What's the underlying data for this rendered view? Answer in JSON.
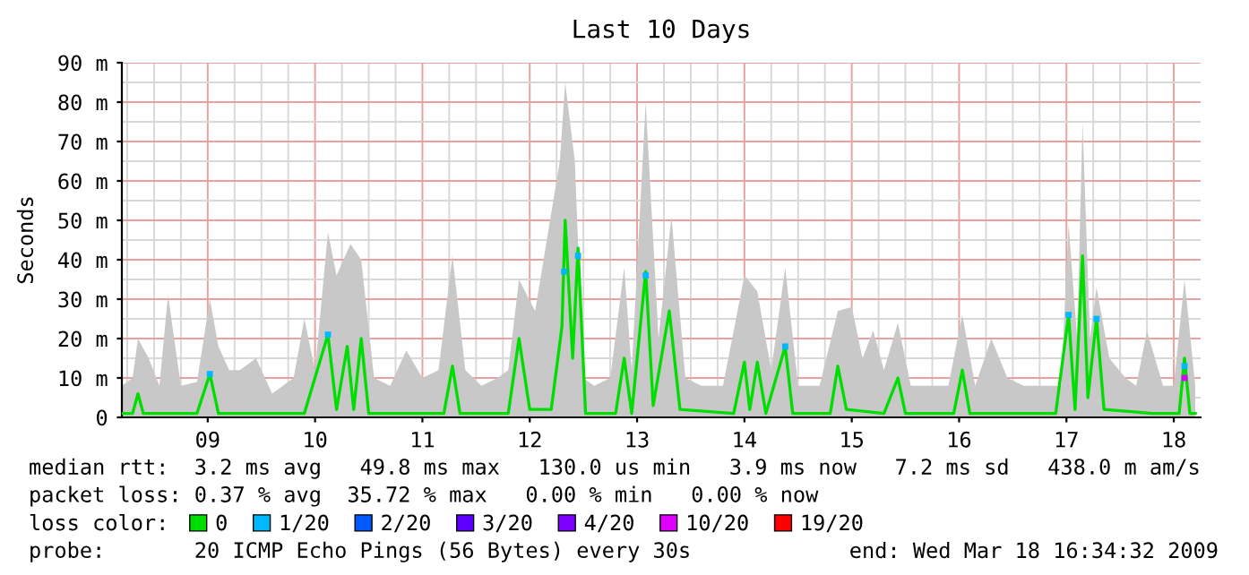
{
  "chart_data": {
    "type": "line",
    "title": "Last 10 Days",
    "ylabel": "Seconds",
    "xlim": [
      8.2,
      18.25
    ],
    "ylim": [
      0,
      90
    ],
    "xticks": [
      {
        "value": 9,
        "label": "09"
      },
      {
        "value": 10,
        "label": "10"
      },
      {
        "value": 11,
        "label": "11"
      },
      {
        "value": 12,
        "label": "12"
      },
      {
        "value": 13,
        "label": "13"
      },
      {
        "value": 14,
        "label": "14"
      },
      {
        "value": 15,
        "label": "15"
      },
      {
        "value": 16,
        "label": "16"
      },
      {
        "value": 17,
        "label": "17"
      },
      {
        "value": 18,
        "label": "18"
      }
    ],
    "yticks": [
      {
        "value": 0,
        "label": "0"
      },
      {
        "value": 10,
        "label": "10 m"
      },
      {
        "value": 20,
        "label": "20 m"
      },
      {
        "value": 30,
        "label": "30 m"
      },
      {
        "value": 40,
        "label": "40 m"
      },
      {
        "value": 50,
        "label": "50 m"
      },
      {
        "value": 60,
        "label": "60 m"
      },
      {
        "value": 70,
        "label": "70 m"
      },
      {
        "value": 80,
        "label": "80 m"
      },
      {
        "value": 90,
        "label": "90 m"
      }
    ],
    "grid": true,
    "legend": "bottom",
    "legend_title": "loss color:",
    "series": [
      {
        "type": "area",
        "color": "#c8c8c8",
        "x": [
          8.2,
          8.3,
          8.35,
          8.45,
          8.55,
          8.63,
          8.75,
          8.9,
          9.02,
          9.1,
          9.2,
          9.3,
          9.45,
          9.6,
          9.8,
          9.9,
          10.0,
          10.12,
          10.2,
          10.33,
          10.43,
          10.55,
          10.7,
          10.85,
          11.0,
          11.15,
          11.28,
          11.4,
          11.55,
          11.7,
          11.8,
          11.9,
          12.05,
          12.28,
          12.33,
          12.42,
          12.5,
          12.6,
          12.75,
          12.88,
          12.95,
          13.08,
          13.2,
          13.32,
          13.45,
          13.6,
          13.8,
          14.0,
          14.12,
          14.25,
          14.38,
          14.5,
          14.7,
          14.87,
          15.0,
          15.1,
          15.2,
          15.3,
          15.43,
          15.55,
          15.7,
          15.9,
          16.03,
          16.15,
          16.3,
          16.45,
          16.6,
          16.8,
          16.95,
          17.02,
          17.1,
          17.15,
          17.22,
          17.28,
          17.4,
          17.55,
          17.65,
          17.75,
          17.9,
          18.0,
          18.1,
          18.2
        ],
        "values": [
          8,
          10,
          20,
          15,
          8,
          31,
          8,
          9,
          30,
          18,
          12,
          12,
          15,
          6,
          10,
          25,
          12,
          47,
          36,
          44,
          40,
          10,
          8,
          17,
          10,
          12,
          41,
          12,
          8,
          10,
          12,
          35,
          27,
          65,
          85,
          65,
          10,
          8,
          10,
          38,
          12,
          80,
          20,
          51,
          10,
          8,
          8,
          36,
          32,
          12,
          38,
          8,
          8,
          27,
          28,
          15,
          22,
          12,
          24,
          8,
          8,
          8,
          26,
          8,
          20,
          10,
          8,
          8,
          8,
          49,
          20,
          75,
          20,
          33,
          15,
          10,
          8,
          22,
          8,
          8,
          35,
          8
        ]
      },
      {
        "name": "0",
        "color": "#00dd00",
        "x": [
          8.2,
          8.3,
          8.35,
          8.4,
          8.6,
          8.9,
          9.02,
          9.1,
          9.4,
          9.9,
          10.12,
          10.2,
          10.3,
          10.36,
          10.43,
          10.5,
          10.9,
          11.2,
          11.28,
          11.35,
          11.8,
          11.9,
          12.0,
          12.2,
          12.3,
          12.33,
          12.4,
          12.45,
          12.52,
          12.8,
          12.88,
          12.95,
          13.08,
          13.15,
          13.3,
          13.4,
          13.9,
          14.0,
          14.05,
          14.12,
          14.2,
          14.38,
          14.45,
          14.8,
          14.87,
          14.95,
          15.3,
          15.43,
          15.5,
          15.95,
          16.03,
          16.1,
          16.9,
          17.02,
          17.08,
          17.15,
          17.2,
          17.28,
          17.35,
          17.8,
          18.05,
          18.1,
          18.15,
          18.2
        ],
        "values": [
          1,
          1,
          6,
          1,
          1,
          1,
          11,
          1,
          1,
          1,
          21,
          2,
          18,
          2,
          20,
          1,
          1,
          1,
          13,
          1,
          1,
          20,
          2,
          2,
          23,
          50,
          15,
          43,
          1,
          1,
          15,
          1,
          37,
          3,
          27,
          2,
          1,
          14,
          2,
          14,
          1,
          18,
          1,
          1,
          13,
          2,
          1,
          10,
          1,
          1,
          12,
          1,
          1,
          26,
          2,
          41,
          5,
          25,
          2,
          1,
          1,
          15,
          1,
          1
        ]
      },
      {
        "type": "scatter",
        "name": "1/20",
        "color": "#00b8ff",
        "x": [
          9.02,
          10.12,
          12.32,
          12.45,
          13.08,
          14.38,
          17.02,
          17.28,
          18.1
        ],
        "values": [
          11,
          21,
          37,
          41,
          36,
          18,
          26,
          25,
          13
        ]
      },
      {
        "type": "scatter",
        "name": "2/20",
        "color": "#0059ff"
      },
      {
        "type": "scatter",
        "name": "3/20",
        "color": "#5e00ff"
      },
      {
        "type": "scatter",
        "name": "4/20",
        "color": "#7e00ff"
      },
      {
        "type": "scatter",
        "name": "10/20",
        "color": "#dd00ff",
        "x": [
          18.1
        ],
        "values": [
          10
        ]
      },
      {
        "type": "scatter",
        "name": "19/20",
        "color": "#ff0000"
      }
    ],
    "annotations": [
      "median rtt:  3.2 ms avg   49.8 ms max   130.0 us min   3.9 ms now   7.2 ms sd   438.0 m am/s",
      "packet loss: 0.37 % avg  35.72 % max   0.00 % min   0.00 % now",
      "probe:       20 ICMP Echo Pings (56 Bytes) every 30s",
      "end: Wed Mar 18 16:34:32 2009"
    ]
  }
}
